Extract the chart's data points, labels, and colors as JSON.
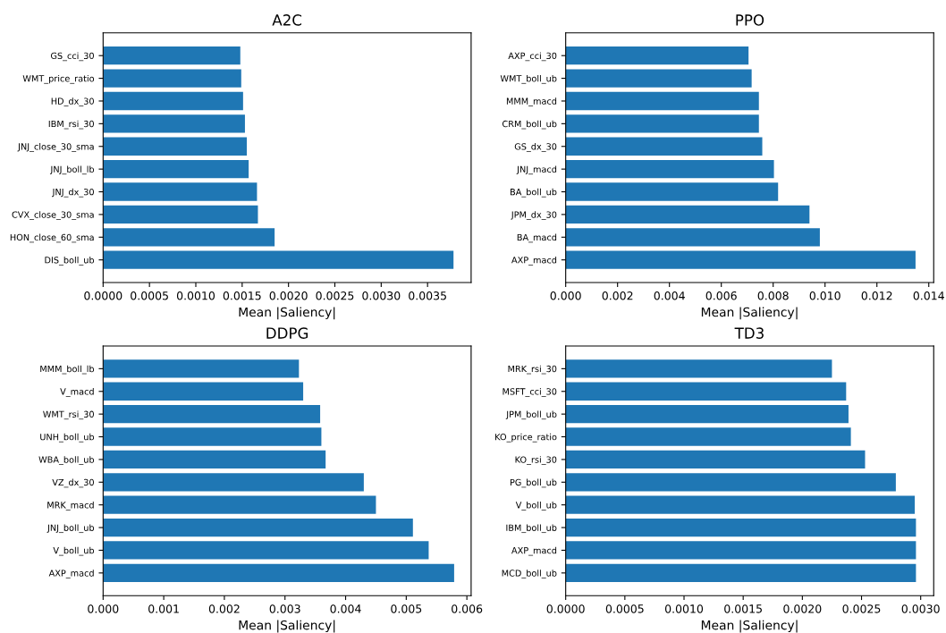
{
  "chart_data": [
    {
      "type": "bar",
      "orientation": "horizontal",
      "title": "A2C",
      "xlabel": "Mean |Saliency|",
      "color": "#1f77b4",
      "categories": [
        "GS_cci_30",
        "WMT_price_ratio",
        "HD_dx_30",
        "IBM_rsi_30",
        "JNJ_close_30_sma",
        "JNJ_boll_lb",
        "JNJ_dx_30",
        "CVX_close_30_sma",
        "HON_close_60_sma",
        "DIS_boll_ub"
      ],
      "values": [
        0.00148,
        0.00149,
        0.00151,
        0.00153,
        0.00155,
        0.00157,
        0.00166,
        0.00167,
        0.00185,
        0.00378
      ],
      "xlim": [
        0,
        0.00397
      ],
      "xticks": [
        {
          "value": 0,
          "label": "0.0000"
        },
        {
          "value": 0.0005,
          "label": "0.0005"
        },
        {
          "value": 0.001,
          "label": "0.0010"
        },
        {
          "value": 0.0015,
          "label": "0.0015"
        },
        {
          "value": 0.002,
          "label": "0.0020"
        },
        {
          "value": 0.0025,
          "label": "0.0025"
        },
        {
          "value": 0.003,
          "label": "0.0030"
        },
        {
          "value": 0.0035,
          "label": "0.0035"
        }
      ]
    },
    {
      "type": "bar",
      "orientation": "horizontal",
      "title": "PPO",
      "xlabel": "Mean |Saliency|",
      "color": "#1f77b4",
      "categories": [
        "AXP_cci_30",
        "WMT_boll_ub",
        "MMM_macd",
        "CRM_boll_ub",
        "GS_dx_30",
        "JNJ_macd",
        "BA_boll_ub",
        "JPM_dx_30",
        "BA_macd",
        "AXP_macd"
      ],
      "values": [
        0.00705,
        0.00717,
        0.00745,
        0.00745,
        0.00758,
        0.00803,
        0.00819,
        0.0094,
        0.0098,
        0.01349
      ],
      "xlim": [
        0,
        0.01419
      ],
      "xticks": [
        {
          "value": 0,
          "label": "0.000"
        },
        {
          "value": 0.002,
          "label": "0.002"
        },
        {
          "value": 0.004,
          "label": "0.004"
        },
        {
          "value": 0.006,
          "label": "0.006"
        },
        {
          "value": 0.008,
          "label": "0.008"
        },
        {
          "value": 0.01,
          "label": "0.010"
        },
        {
          "value": 0.012,
          "label": "0.012"
        },
        {
          "value": 0.014,
          "label": "0.014"
        }
      ]
    },
    {
      "type": "bar",
      "orientation": "horizontal",
      "title": "DDPG",
      "xlabel": "Mean |Saliency|",
      "color": "#1f77b4",
      "categories": [
        "MMM_boll_lb",
        "V_macd",
        "WMT_rsi_30",
        "UNH_boll_ub",
        "WBA_boll_ub",
        "VZ_dx_30",
        "MRK_macd",
        "JNJ_boll_ub",
        "V_boll_ub",
        "AXP_macd"
      ],
      "values": [
        0.00323,
        0.0033,
        0.00358,
        0.0036,
        0.00367,
        0.0043,
        0.0045,
        0.00511,
        0.00537,
        0.00579
      ],
      "xlim": [
        0,
        0.00607
      ],
      "xticks": [
        {
          "value": 0,
          "label": "0.000"
        },
        {
          "value": 0.001,
          "label": "0.001"
        },
        {
          "value": 0.002,
          "label": "0.002"
        },
        {
          "value": 0.003,
          "label": "0.003"
        },
        {
          "value": 0.004,
          "label": "0.004"
        },
        {
          "value": 0.005,
          "label": "0.005"
        },
        {
          "value": 0.006,
          "label": "0.006"
        }
      ]
    },
    {
      "type": "bar",
      "orientation": "horizontal",
      "title": "TD3",
      "xlabel": "Mean |Saliency|",
      "color": "#1f77b4",
      "categories": [
        "MRK_rsi_30",
        "MSFT_cci_30",
        "JPM_boll_ub",
        "KO_price_ratio",
        "KO_rsi_30",
        "PG_boll_ub",
        "V_boll_ub",
        "IBM_boll_ub",
        "AXP_macd",
        "MCD_boll_ub"
      ],
      "values": [
        0.00225,
        0.00237,
        0.00239,
        0.00241,
        0.00253,
        0.00279,
        0.00295,
        0.00296,
        0.00296,
        0.00296
      ],
      "xlim": [
        0,
        0.00311
      ],
      "xticks": [
        {
          "value": 0,
          "label": "0.0000"
        },
        {
          "value": 0.0005,
          "label": "0.0005"
        },
        {
          "value": 0.001,
          "label": "0.0010"
        },
        {
          "value": 0.0015,
          "label": "0.0015"
        },
        {
          "value": 0.002,
          "label": "0.0020"
        },
        {
          "value": 0.0025,
          "label": "0.0025"
        },
        {
          "value": 0.003,
          "label": "0.0030"
        }
      ]
    }
  ]
}
